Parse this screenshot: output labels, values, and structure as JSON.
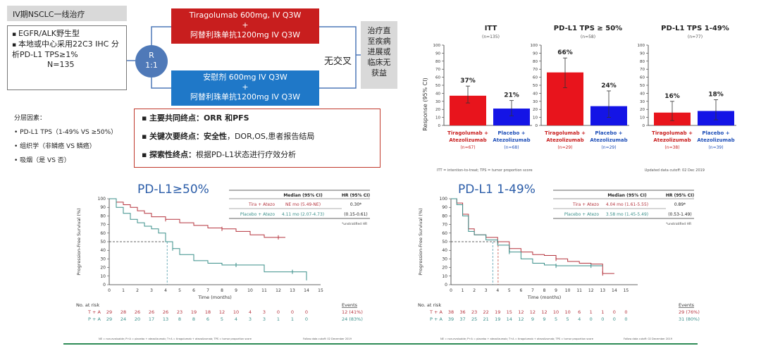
{
  "design": {
    "title": "IV期NSCLC一线治疗",
    "eligibility": [
      "EGFR/ALK野生型",
      "本地或中心采用22C3 IHC 分析PD-L1 TPS≥1%"
    ],
    "n": "N=135",
    "randomization": [
      "R",
      "1:1"
    ],
    "arm_red": [
      "Tiragolumab 600mg, IV Q3W",
      "+",
      "阿替利珠单抗1200mg IV Q3W"
    ],
    "arm_blue": [
      "安慰剂 600mg IV  Q3W",
      "+",
      "阿替利珠单抗1200mg IV Q3W"
    ],
    "no_crossover": "无交叉",
    "treat_until": [
      "治疗直",
      "至疾病",
      "进展或",
      "临床无",
      "获益"
    ],
    "strat_title": "分层因素：",
    "strat_items": [
      "PD-L1 TPS（1-49% VS ≥50%）",
      "组织学（非鳞癌 VS 鳞癌）",
      "吸烟（是 VS 否）"
    ],
    "endpoints": [
      {
        "bold": "主要共同终点：ORR 和PFS",
        "rest": ""
      },
      {
        "bold": "关键次要终点：安全性",
        "rest": "，DOR,OS,患者报告结局"
      },
      {
        "bold": "探索性终点：",
        "rest": "根据PD-L1状态进行疗效分析"
      }
    ]
  },
  "orr": {
    "ylabel": "Response (95% CI)",
    "footnote_left": "ITT = intention-to-treat; TPS = tumor proportion score",
    "footnote_right": "Updated data cutoff: 02 Dec 2019",
    "colors": {
      "tira": "#e8141c",
      "placebo": "#1414e6"
    },
    "panels": [
      {
        "title": "ITT",
        "n": "(n=135)",
        "values": [
          37,
          21
        ],
        "ci": [
          [
            28,
            49
          ],
          [
            12,
            31
          ]
        ],
        "labels": [
          "37%",
          "21%"
        ],
        "ns": [
          "(n=67)",
          "(n=68)"
        ]
      },
      {
        "title": "PD-L1 TPS ≥ 50%",
        "n": "(n=58)",
        "values": [
          66,
          24
        ],
        "ci": [
          [
            47,
            84
          ],
          [
            10,
            43
          ]
        ],
        "labels": [
          "66%",
          "24%"
        ],
        "ns": [
          "(n=29)",
          "(n=29)"
        ]
      },
      {
        "title": "PD-L1 TPS 1-49%",
        "n": "(n=77)",
        "values": [
          16,
          18
        ],
        "ci": [
          [
            6,
            30
          ],
          [
            7,
            32
          ]
        ],
        "labels": [
          "16%",
          "18%"
        ],
        "ns": [
          "(n=38)",
          "(n=39)"
        ]
      }
    ],
    "arm_labels": [
      [
        "Tiragolumab +",
        "Atezolizumab"
      ],
      [
        "Placebo +",
        "Atezolizumab"
      ]
    ],
    "yticks": [
      0,
      10,
      20,
      30,
      40,
      50,
      60,
      70,
      80,
      90,
      100
    ]
  },
  "km": [
    {
      "title": "PD-L1≥50%",
      "ylabel": "Progression-Free Survival (%)",
      "xlabel": "Time (months)",
      "hdr_median": "Median (95% CI)",
      "hdr_hr": "HR (95% CI)",
      "row1": {
        "name": "Tira + Atezo",
        "median": "NE mo (5.49-NE)",
        "hr": "0.30*"
      },
      "row2": {
        "name": "Placebo + Atezo",
        "median": "4.11 mo (2.07-4.73)",
        "hr": "(0.15-0.61)"
      },
      "hr_note": "*unstratified HR",
      "at_risk_label": "No. at risk",
      "ta_label": "T + A",
      "pa_label": "P + A",
      "ta_risk": [
        "29",
        "28",
        "26",
        "26",
        "26",
        "23",
        "19",
        "18",
        "12",
        "10",
        "4",
        "3",
        "0",
        "0",
        "0"
      ],
      "pa_risk": [
        "29",
        "24",
        "20",
        "17",
        "13",
        "8",
        "8",
        "6",
        "5",
        "4",
        "3",
        "3",
        "1",
        "1",
        "0"
      ],
      "events_label": "Events",
      "ta_events": "12 (41%)",
      "pa_events": "24 (83%)",
      "footnote": "NE = non-evaluable; P+A = placebo + atezolizumab; T+A = tiragolumab + atezolizumab; TPS = tumor proportion score",
      "cutoff": "Follow data cutoff: 02 December 2019",
      "xmax": 15
    },
    {
      "title": "PD-L1 1-49%",
      "ylabel": "Progression-Free Survival (%)",
      "xlabel": "Time (months)",
      "hdr_median": "Median (95% CI)",
      "hdr_hr": "HR (95% CI)",
      "row1": {
        "name": "Tira + Atezo",
        "median": "4.04 mo (1.61-5.55)",
        "hr": "0.89*"
      },
      "row2": {
        "name": "Placebo + Atezo",
        "median": "3.58 mo (1.45-5.49)",
        "hr": "(0.53-1.49)"
      },
      "hr_note": "*unstratified HR",
      "at_risk_label": "No. at risk",
      "ta_label": "T + A",
      "pa_label": "P + A",
      "ta_risk": [
        "38",
        "36",
        "23",
        "22",
        "19",
        "15",
        "12",
        "12",
        "12",
        "10",
        "10",
        "6",
        "1",
        "1",
        "0",
        "0"
      ],
      "pa_risk": [
        "39",
        "37",
        "25",
        "21",
        "19",
        "14",
        "12",
        "9",
        "9",
        "5",
        "5",
        "4",
        "0",
        "0",
        "0",
        "0"
      ],
      "events_label": "Events",
      "ta_events": "29 (76%)",
      "pa_events": "31 (80%)",
      "footnote": "NE = non-evaluable; P+A = placebo + atezolizumab; T+A = tiragolumab + atezolizumab; TPS = tumor proportion score",
      "cutoff": "Follow data cutoff: 02 December 2019",
      "xmax": 16
    }
  ],
  "chart_data": [
    {
      "type": "bar",
      "title": "ITT",
      "ylabel": "Response (95% CI)",
      "categories": [
        "Tiragolumab + Atezolizumab",
        "Placebo + Atezolizumab"
      ],
      "values": [
        37,
        21
      ],
      "ylim": [
        0,
        100
      ]
    },
    {
      "type": "bar",
      "title": "PD-L1 TPS ≥ 50%",
      "ylabel": "Response (95% CI)",
      "categories": [
        "Tiragolumab + Atezolizumab",
        "Placebo + Atezolizumab"
      ],
      "values": [
        66,
        24
      ],
      "ylim": [
        0,
        100
      ]
    },
    {
      "type": "bar",
      "title": "PD-L1 TPS 1-49%",
      "ylabel": "Response (95% CI)",
      "categories": [
        "Tiragolumab + Atezolizumab",
        "Placebo + Atezolizumab"
      ],
      "values": [
        16,
        18
      ],
      "ylim": [
        0,
        100
      ]
    },
    {
      "type": "line",
      "title": "PD-L1≥50%",
      "xlabel": "Time (months)",
      "ylabel": "Progression-Free Survival (%)",
      "xlim": [
        0,
        15
      ],
      "ylim": [
        0,
        100
      ],
      "series": [
        {
          "name": "Tira + Atezo",
          "x": [
            0,
            0.5,
            1,
            1.5,
            2,
            2.5,
            3,
            4,
            5,
            6,
            7,
            8,
            9,
            10,
            11,
            12,
            12.5
          ],
          "y": [
            100,
            96,
            93,
            90,
            86,
            83,
            79,
            76,
            72,
            69,
            66,
            65,
            62,
            58,
            55,
            55,
            55
          ]
        },
        {
          "name": "Placebo + Atezo",
          "x": [
            0,
            0.5,
            1,
            1.5,
            2,
            2.5,
            3,
            3.5,
            4,
            4.5,
            5,
            6,
            7,
            8,
            9,
            10,
            11,
            12,
            13,
            14
          ],
          "y": [
            100,
            90,
            83,
            76,
            72,
            68,
            65,
            60,
            50,
            42,
            35,
            28,
            25,
            23,
            23,
            23,
            15,
            15,
            15,
            5
          ]
        }
      ]
    },
    {
      "type": "line",
      "title": "PD-L1 1-49%",
      "xlabel": "Time (months)",
      "ylabel": "Progression-Free Survival (%)",
      "xlim": [
        0,
        16
      ],
      "ylim": [
        0,
        100
      ],
      "series": [
        {
          "name": "Tira + Atezo",
          "x": [
            0,
            0.5,
            1,
            1.5,
            2,
            3,
            4,
            5,
            6,
            7,
            8,
            9,
            10,
            11,
            12,
            13,
            14
          ],
          "y": [
            100,
            95,
            82,
            65,
            58,
            55,
            50,
            42,
            38,
            35,
            34,
            30,
            27,
            25,
            24,
            13,
            13
          ]
        },
        {
          "name": "Placebo + Atezo",
          "x": [
            0,
            0.5,
            1,
            1.5,
            2,
            3,
            4,
            5,
            6,
            7,
            8,
            9,
            10,
            11,
            12,
            13
          ],
          "y": [
            100,
            93,
            80,
            62,
            58,
            52,
            46,
            38,
            30,
            25,
            23,
            22,
            22,
            22,
            22,
            22
          ]
        }
      ]
    }
  ]
}
